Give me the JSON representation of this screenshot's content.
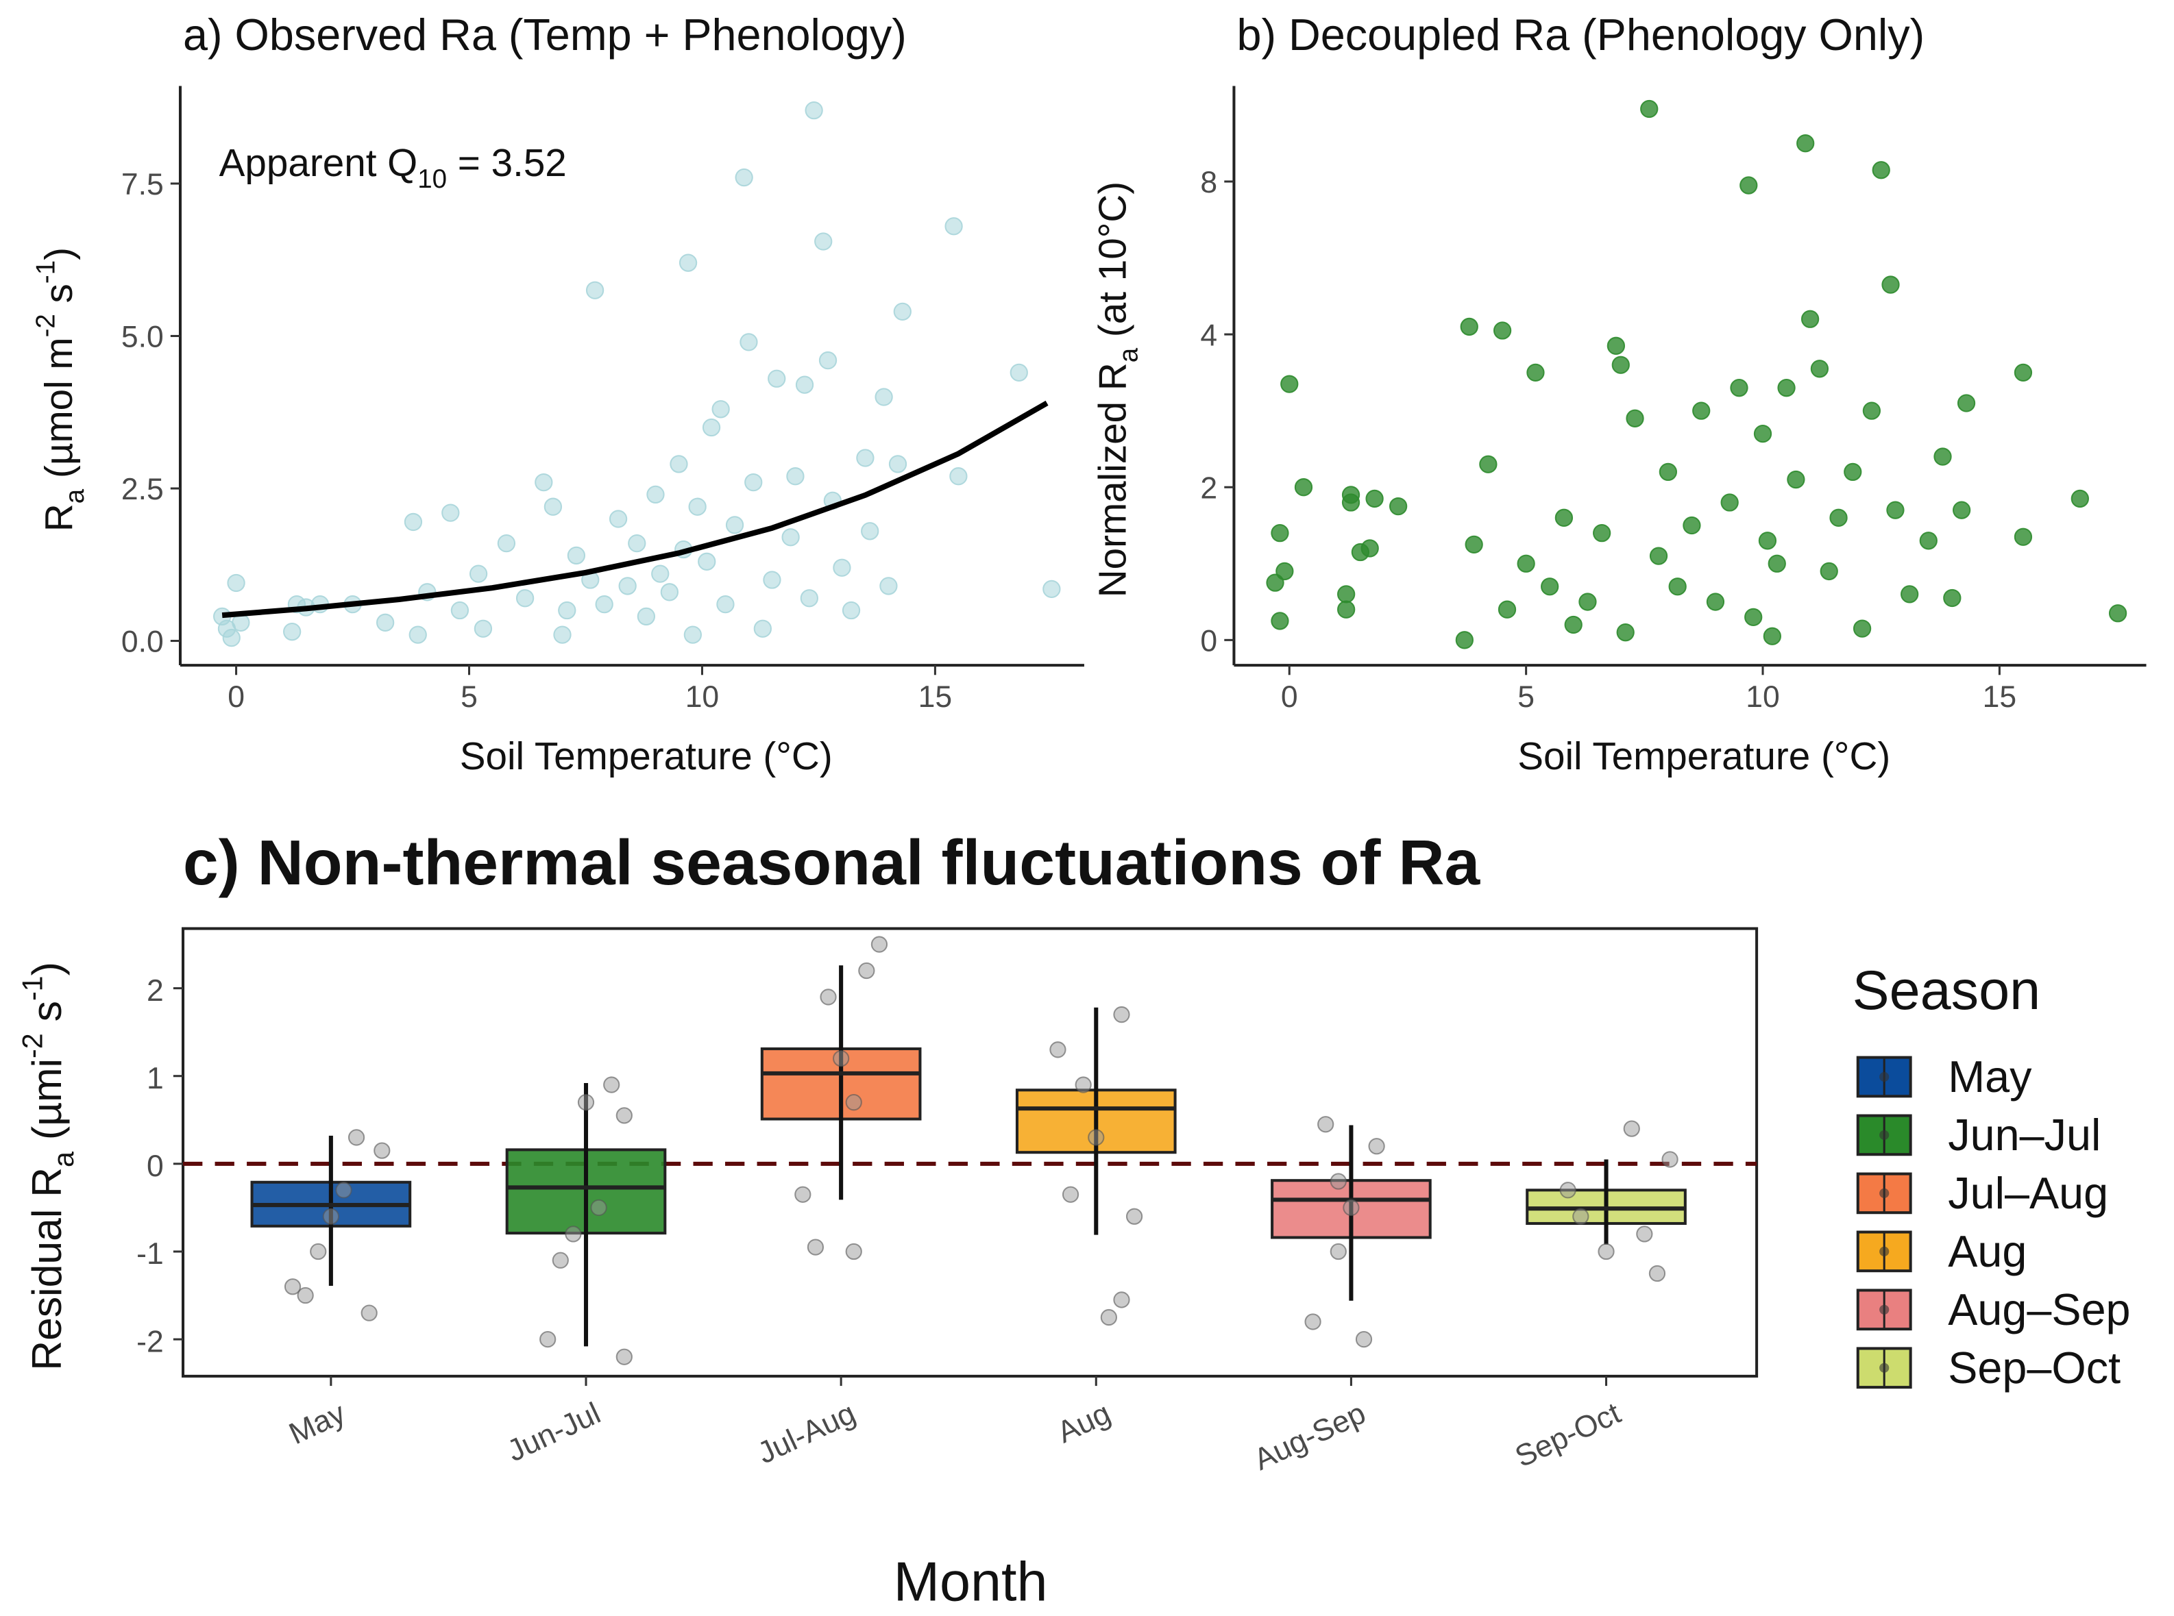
{
  "chart_data": [
    {
      "type": "scatter",
      "title": "a) Observed Ra (Temp + Phenology)",
      "xlabel": "Soil Temperature (°C)",
      "ylabel": [
        {
          "text": "R"
        },
        {
          "text": "a",
          "shift": "sub"
        },
        {
          "text": " (µmol m"
        },
        {
          "text": "-2",
          "shift": "sup"
        },
        {
          "text": " s"
        },
        {
          "text": "-1",
          "shift": "sup"
        },
        {
          "text": ")"
        }
      ],
      "annotation": [
        {
          "text": "Apparent Q"
        },
        {
          "text": "10",
          "shift": "sub"
        },
        {
          "text": " = 3.52"
        }
      ],
      "xlim": [
        -1.2,
        18.2
      ],
      "ylim": [
        -0.4,
        9.1
      ],
      "xticks": [
        0,
        5,
        10,
        15
      ],
      "yticks": [
        {
          "value": 0,
          "label": "0.0"
        },
        2.5,
        {
          "value": 5,
          "label": "5.0"
        },
        7.5
      ],
      "color": "#a8d5da",
      "x": [
        -0.3,
        -0.2,
        0,
        0.1,
        -0.1,
        1.2,
        1.3,
        1.5,
        1.8,
        2.5,
        3.2,
        3.8,
        3.9,
        4.1,
        4.6,
        4.8,
        5.2,
        5.3,
        5.8,
        6.2,
        6.6,
        6.8,
        7.0,
        7.1,
        7.3,
        7.6,
        7.7,
        7.9,
        8.2,
        8.4,
        8.6,
        8.8,
        9.0,
        9.1,
        9.3,
        9.5,
        9.6,
        9.7,
        9.8,
        9.9,
        10.1,
        10.2,
        10.4,
        10.5,
        10.7,
        10.9,
        11.0,
        11.1,
        11.3,
        11.5,
        11.6,
        11.9,
        12.0,
        12.2,
        12.3,
        12.4,
        12.6,
        12.7,
        12.8,
        13.0,
        13.2,
        13.5,
        13.6,
        13.9,
        14.0,
        14.2,
        14.3,
        15.4,
        15.5,
        16.8,
        17.5
      ],
      "values": [
        0.4,
        0.2,
        0.95,
        0.3,
        0.05,
        0.15,
        0.6,
        0.55,
        0.6,
        0.6,
        0.3,
        1.95,
        0.1,
        0.8,
        2.1,
        0.5,
        1.1,
        0.2,
        1.6,
        0.7,
        2.6,
        2.2,
        0.1,
        0.5,
        1.4,
        1.0,
        5.75,
        0.6,
        2.0,
        0.9,
        1.6,
        0.4,
        2.4,
        1.1,
        0.8,
        2.9,
        1.5,
        6.2,
        0.1,
        2.2,
        1.3,
        3.5,
        3.8,
        0.6,
        1.9,
        7.6,
        4.9,
        2.6,
        0.2,
        1.0,
        4.3,
        1.7,
        2.7,
        4.2,
        0.7,
        8.7,
        6.55,
        4.6,
        2.3,
        1.2,
        0.5,
        3.0,
        1.8,
        4.0,
        0.9,
        2.9,
        5.4,
        6.8,
        2.7,
        4.4,
        0.85
      ],
      "fit": {
        "color": "#000000",
        "x": [
          -0.3,
          1.5,
          3.5,
          5.5,
          7.5,
          9.5,
          11.5,
          13.5,
          15.5,
          17.4
        ],
        "values": [
          0.42,
          0.53,
          0.68,
          0.87,
          1.12,
          1.44,
          1.85,
          2.39,
          3.07,
          3.9
        ]
      }
    },
    {
      "type": "scatter",
      "title": "b) Decoupled Ra (Phenology Only)",
      "xlabel": "Soil Temperature (°C)",
      "ylabel": [
        {
          "text": "Normalized R"
        },
        {
          "text": "a",
          "shift": "sub"
        },
        {
          "text": " (at 10°C)"
        }
      ],
      "xlim": [
        -1.17,
        18.1
      ],
      "ylim": [
        -0.33,
        10.5
      ],
      "yscale": "piecewise",
      "xticks": [
        0,
        5,
        10,
        15
      ],
      "yticks": [
        0,
        2,
        4,
        8
      ],
      "color": "#2e8b2e",
      "x": [
        -0.3,
        -0.2,
        -0.1,
        -0.2,
        0,
        0.3,
        1.2,
        1.2,
        1.3,
        1.3,
        1.5,
        1.7,
        1.8,
        2.3,
        3.7,
        3.8,
        3.9,
        4.2,
        4.5,
        4.6,
        5.0,
        5.2,
        5.5,
        5.8,
        6.0,
        6.3,
        6.6,
        6.9,
        7.0,
        7.1,
        7.3,
        7.6,
        7.8,
        8.0,
        8.2,
        8.5,
        8.7,
        9.0,
        9.3,
        9.5,
        9.7,
        9.8,
        10.0,
        10.1,
        10.2,
        10.3,
        10.5,
        10.7,
        10.9,
        11.0,
        11.2,
        11.4,
        11.6,
        11.9,
        12.1,
        12.3,
        12.5,
        12.7,
        12.8,
        13.1,
        13.5,
        13.8,
        14.0,
        14.3,
        14.2,
        15.5,
        15.5,
        16.7,
        17.5
      ],
      "values": [
        0.75,
        1.4,
        0.9,
        0.25,
        3.35,
        2.0,
        0.4,
        0.6,
        1.9,
        1.8,
        1.15,
        1.2,
        1.85,
        1.75,
        0.0,
        4.2,
        1.25,
        2.3,
        4.1,
        0.4,
        1.0,
        3.5,
        0.7,
        1.6,
        0.2,
        0.5,
        1.4,
        3.85,
        3.6,
        0.1,
        2.9,
        9.9,
        1.1,
        2.2,
        0.7,
        1.5,
        3.0,
        0.5,
        1.8,
        3.3,
        7.9,
        0.3,
        2.7,
        1.3,
        0.05,
        1.0,
        3.3,
        2.1,
        9.0,
        4.4,
        3.55,
        0.9,
        1.6,
        2.2,
        0.15,
        3.0,
        8.3,
        5.3,
        1.7,
        0.6,
        1.3,
        2.4,
        0.55,
        3.1,
        1.7,
        3.5,
        1.35,
        1.85,
        0.35
      ]
    },
    {
      "type": "box",
      "title": "c) Non-thermal seasonal fluctuations of Ra",
      "xlabel": "Month",
      "ylabel": [
        {
          "text": "Residual R"
        },
        {
          "text": "a",
          "shift": "sub"
        },
        {
          "text": " (µmi"
        },
        {
          "text": "-2",
          "shift": "sup"
        },
        {
          "text": " s"
        },
        {
          "text": "-1",
          "shift": "sup"
        },
        {
          "text": ")"
        }
      ],
      "ylim": [
        -2.42,
        2.68
      ],
      "yticks": [
        -2,
        -1,
        0,
        1,
        2
      ],
      "categories": [
        "May",
        "Jun-Jul",
        "Jul-Aug",
        "Aug",
        "Aug-Sep",
        "Sep-Oct"
      ],
      "reference_line": {
        "value": 0,
        "color": "#5c0a0a"
      },
      "legend_title": "Season",
      "point_color": "#9a9a9a",
      "series": [
        {
          "name": "May",
          "color": "#0b4c9c",
          "stats": [
            -1.39,
            -0.71,
            -0.47,
            -0.21,
            0.32
          ],
          "points_x": [
            0.9,
            0.95,
            1.0,
            1.05,
            1.1,
            1.15,
            1.2,
            0.85
          ],
          "points_y": [
            -1.5,
            -1.0,
            -0.6,
            -0.3,
            0.3,
            -1.7,
            0.15,
            -1.4
          ]
        },
        {
          "name": "Jun–Jul",
          "color": "#2a8a2a",
          "stats": [
            -2.08,
            -0.79,
            -0.27,
            0.16,
            0.92
          ],
          "points_x": [
            1.85,
            1.9,
            2.0,
            2.05,
            2.1,
            2.15,
            2.15,
            1.95
          ],
          "points_y": [
            -2.0,
            -1.1,
            0.7,
            -0.5,
            0.9,
            -2.2,
            0.55,
            -0.8
          ]
        },
        {
          "name": "Jul–Aug",
          "color": "#f47a45",
          "stats": [
            -0.41,
            0.51,
            1.03,
            1.31,
            2.26
          ],
          "points_x": [
            2.85,
            2.9,
            2.95,
            3.0,
            3.05,
            3.1,
            3.15,
            3.05
          ],
          "points_y": [
            -0.35,
            -0.95,
            1.9,
            1.2,
            0.7,
            2.2,
            2.5,
            -1.0
          ]
        },
        {
          "name": "Aug",
          "color": "#f6a91f",
          "stats": [
            -0.81,
            0.13,
            0.63,
            0.84,
            1.78
          ],
          "points_x": [
            3.85,
            3.9,
            3.95,
            4.0,
            4.1,
            4.15,
            4.1,
            4.05
          ],
          "points_y": [
            1.3,
            -0.35,
            0.9,
            0.3,
            1.7,
            -0.6,
            -1.55,
            -1.75
          ]
        },
        {
          "name": "Aug–Sep",
          "color": "#e98080",
          "stats": [
            -1.56,
            -0.84,
            -0.41,
            -0.19,
            0.44
          ],
          "points_x": [
            4.85,
            4.9,
            4.95,
            5.0,
            5.05,
            5.1,
            4.95
          ],
          "points_y": [
            -1.8,
            0.45,
            -1.0,
            -0.5,
            -2.0,
            0.2,
            -0.2
          ]
        },
        {
          "name": "Sep–Oct",
          "color": "#cddc6e",
          "stats": [
            -0.92,
            -0.68,
            -0.51,
            -0.3,
            0.05
          ],
          "points_x": [
            5.85,
            5.9,
            6.0,
            6.1,
            6.15,
            6.2,
            6.25
          ],
          "points_y": [
            -0.3,
            -0.6,
            -1.0,
            0.4,
            -0.8,
            -1.25,
            0.05
          ]
        }
      ]
    }
  ]
}
